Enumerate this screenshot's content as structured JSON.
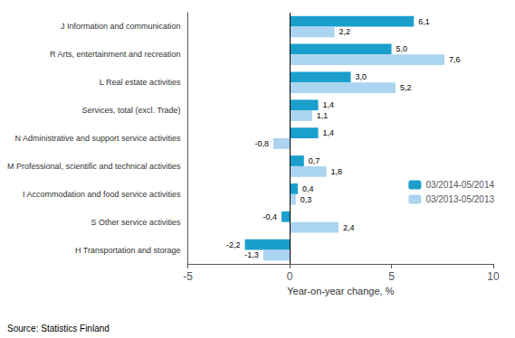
{
  "chart_data": {
    "type": "bar",
    "orientation": "horizontal",
    "categories": [
      "H Transportation and storage",
      "S Other service activities",
      "I Accommodation and food service activities",
      "M Professional, scientific and technical activities",
      "N Administrative and support service activities",
      "Services, total (excl. Trade)",
      "L Real estate activities",
      "R Arts, entertainment and recreation",
      "J Information and communication"
    ],
    "series": [
      {
        "name": "03/2014-05/2014",
        "color": "#1a9fcc",
        "values": [
          -2.2,
          -0.4,
          0.4,
          0.7,
          1.4,
          1.4,
          3.0,
          5.0,
          6.1
        ],
        "value_labels": [
          "-2,2",
          "-0,4",
          "0,4",
          "0,7",
          "1,4",
          "1,4",
          "3,0",
          "5,0",
          "6,1"
        ]
      },
      {
        "name": "03/2013-05/2013",
        "color": "#aad4f0",
        "values": [
          -1.3,
          2.4,
          0.3,
          1.8,
          -0.8,
          1.1,
          5.2,
          7.6,
          2.2
        ],
        "value_labels": [
          "-1,3",
          "2,4",
          "0,3",
          "1,8",
          "-0,8",
          "1,1",
          "5,2",
          "7,6",
          "2,2"
        ]
      }
    ],
    "xlabel": "Year-on-year change, %",
    "xlim": [
      -5,
      10
    ],
    "xticks": [
      -5,
      0,
      5,
      10
    ],
    "data_labels": true,
    "grid": false,
    "legend": "right",
    "annotations": [
      "Source: Statistics Finland"
    ]
  }
}
